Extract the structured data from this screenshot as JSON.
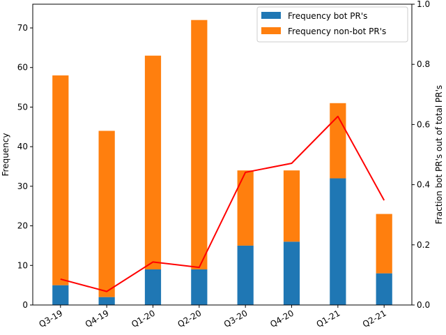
{
  "chart_data": {
    "type": "bar",
    "stacked": true,
    "categories": [
      "Q3-19",
      "Q4-19",
      "Q1-20",
      "Q2-20",
      "Q3-20",
      "Q4-20",
      "Q1-21",
      "Q2-21"
    ],
    "series": [
      {
        "name": "Frequency bot PR's",
        "values": [
          5,
          2,
          9,
          9,
          15,
          16,
          32,
          8
        ],
        "color": "#1f77b4",
        "axis": "left"
      },
      {
        "name": "Frequency non-bot PR's",
        "values": [
          53,
          42,
          54,
          63,
          19,
          18,
          19,
          15
        ],
        "color": "#ff7f0e",
        "axis": "left"
      }
    ],
    "line_series": {
      "name": "",
      "values": [
        0.086,
        0.045,
        0.143,
        0.125,
        0.441,
        0.471,
        0.627,
        0.348
      ],
      "color": "#ff0000",
      "axis": "right"
    },
    "xlabel": "",
    "ylabel": "Frequency",
    "y2label": "Fraction bot PR's out of total PR's",
    "ylim": [
      0,
      76
    ],
    "y2lim": [
      0,
      1.0
    ],
    "yticks": [
      "0",
      "10",
      "20",
      "30",
      "40",
      "50",
      "60",
      "70"
    ],
    "y2ticks": [
      "0.0",
      "0.2",
      "0.4",
      "0.6",
      "0.8",
      "1.0"
    ],
    "legend_position": "top-right",
    "grid": false
  }
}
